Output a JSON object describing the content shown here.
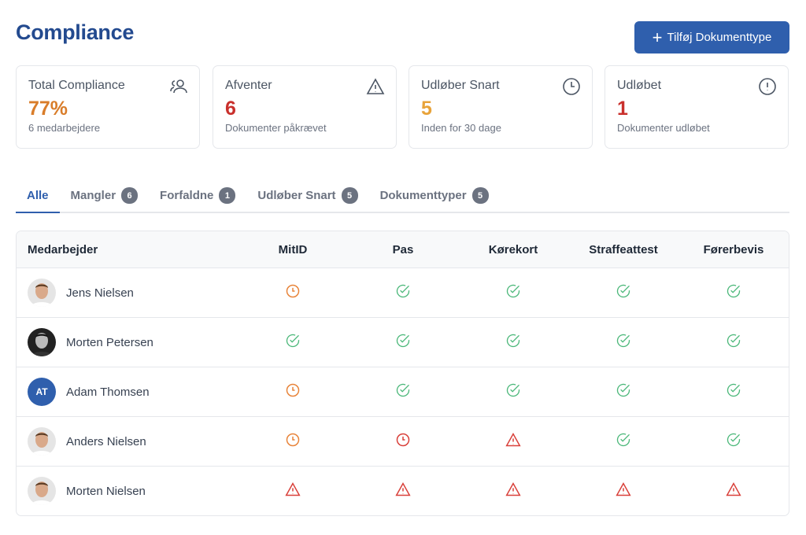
{
  "title": "Compliance",
  "add_button": "Tilføj Dokumenttype",
  "cards": [
    {
      "label": "Total Compliance",
      "value": "77%",
      "sub": "6 medarbejdere",
      "color": "#d97d2a",
      "icon": "users-icon"
    },
    {
      "label": "Afventer",
      "value": "6",
      "sub": "Dokumenter påkrævet",
      "color": "#c9302c",
      "icon": "warning-icon"
    },
    {
      "label": "Udløber Snart",
      "value": "5",
      "sub": "Inden for 30 dage",
      "color": "#e8a33a",
      "icon": "clock-icon"
    },
    {
      "label": "Udløbet",
      "value": "1",
      "sub": "Dokumenter udløbet",
      "color": "#c9302c",
      "icon": "alert-circle-icon"
    }
  ],
  "tabs": [
    {
      "label": "Alle",
      "count": null
    },
    {
      "label": "Mangler",
      "count": "6"
    },
    {
      "label": "Forfaldne",
      "count": "1"
    },
    {
      "label": "Udløber Snart",
      "count": "5"
    },
    {
      "label": "Dokumenttyper",
      "count": "5"
    }
  ],
  "columns": [
    "Medarbejder",
    "MitID",
    "Pas",
    "Kørekort",
    "Straffeattest",
    "Førerbevis"
  ],
  "rows": [
    {
      "name": "Jens Nielsen",
      "avatar": "photo",
      "status": [
        "pending",
        "ok",
        "ok",
        "ok",
        "ok"
      ]
    },
    {
      "name": "Morten Petersen",
      "avatar": "photo-dark",
      "status": [
        "ok",
        "ok",
        "ok",
        "ok",
        "ok"
      ]
    },
    {
      "name": "Adam Thomsen",
      "avatar": "AT",
      "status": [
        "pending",
        "ok",
        "ok",
        "ok",
        "ok"
      ]
    },
    {
      "name": "Anders Nielsen",
      "avatar": "photo",
      "status": [
        "pending",
        "expired",
        "missing",
        "ok",
        "ok"
      ]
    },
    {
      "name": "Morten Nielsen",
      "avatar": "photo",
      "status": [
        "missing",
        "missing",
        "missing",
        "missing",
        "missing"
      ]
    }
  ]
}
